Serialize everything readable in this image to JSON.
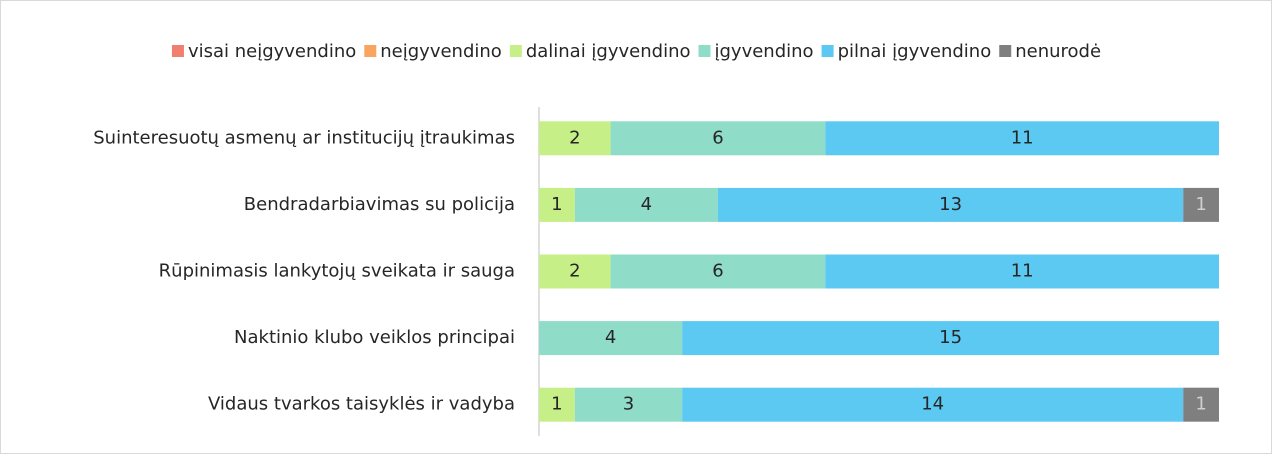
{
  "chart_data": {
    "type": "stacked_bar_horizontal",
    "categories": [
      "Suinteresuotų asmenų ar institucijų įtraukimas",
      "Bendradarbiavimas su policija",
      "Rūpinimasis lankytojų sveikata ir sauga",
      "Naktinio klubo veiklos principai",
      "Vidaus tvarkos taisyklės ir vadyba"
    ],
    "series": [
      {
        "name": "visai neįgyvendino",
        "color": "#f07f6f",
        "values": [
          0,
          0,
          0,
          0,
          0
        ]
      },
      {
        "name": "neįgyvendino",
        "color": "#f8a55f",
        "values": [
          0,
          0,
          0,
          0,
          0
        ]
      },
      {
        "name": "dalinai įgyvendino",
        "color": "#c7ef87",
        "values": [
          2,
          1,
          2,
          0,
          1
        ]
      },
      {
        "name": "įgyvendino",
        "color": "#8fdcc9",
        "values": [
          6,
          4,
          6,
          4,
          3
        ]
      },
      {
        "name": "pilnai įgyvendino",
        "color": "#5bc9f1",
        "values": [
          11,
          13,
          11,
          15,
          14
        ]
      },
      {
        "name": "nenurodė",
        "color": "#7f7f7f",
        "values": [
          0,
          1,
          0,
          0,
          1
        ]
      }
    ],
    "xlim": [
      0,
      19
    ],
    "legend": "top"
  }
}
